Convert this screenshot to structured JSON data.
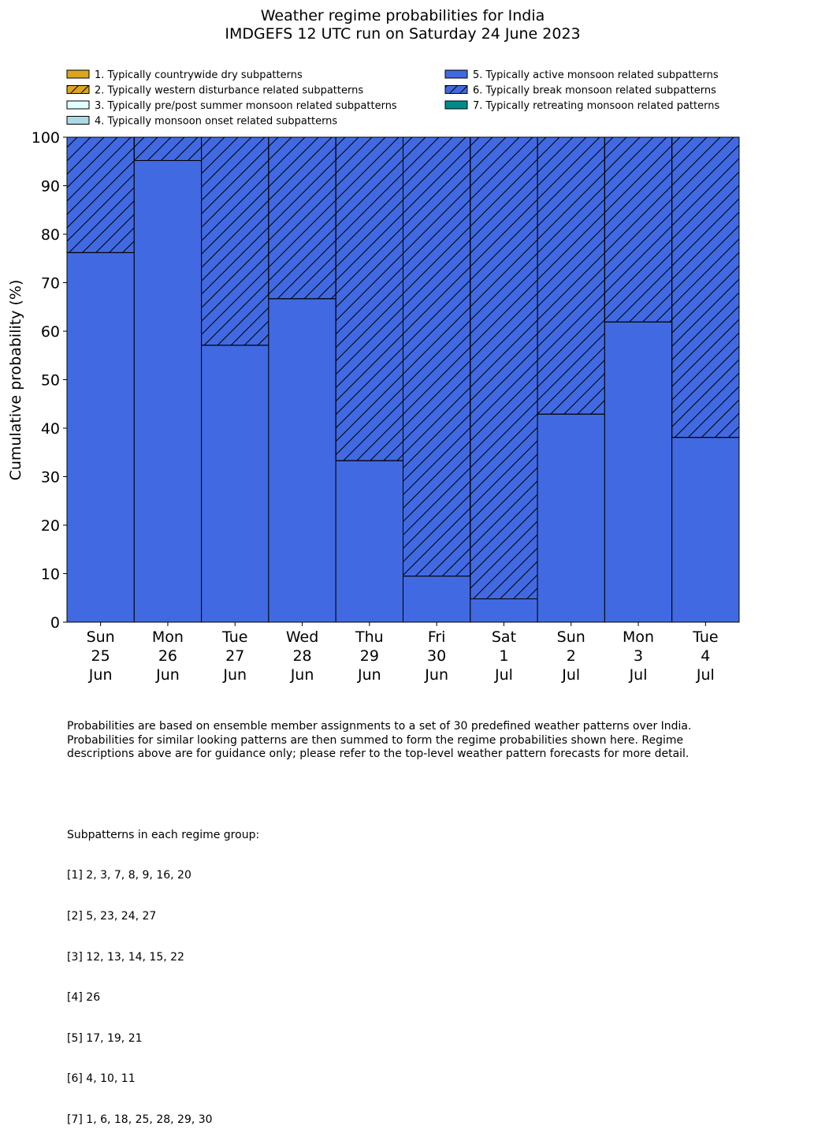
{
  "chart_data": {
    "type": "bar",
    "stacked": true,
    "title": "Weather regime probabilities for India",
    "subtitle": "IMDGEFS 12 UTC run on Saturday 24 June 2023",
    "ylabel": "Cumulative probability (%)",
    "xlabel": "",
    "ylim": [
      0,
      100
    ],
    "yticks": [
      0,
      10,
      20,
      30,
      40,
      50,
      60,
      70,
      80,
      90,
      100
    ],
    "grid": false,
    "legend_placement": "top",
    "categories": [
      [
        "Sun",
        "25",
        "Jun"
      ],
      [
        "Mon",
        "26",
        "Jun"
      ],
      [
        "Tue",
        "27",
        "Jun"
      ],
      [
        "Wed",
        "28",
        "Jun"
      ],
      [
        "Thu",
        "29",
        "Jun"
      ],
      [
        "Fri",
        "30",
        "Jun"
      ],
      [
        "Sat",
        "1",
        "Jul"
      ],
      [
        "Sun",
        "2",
        "Jul"
      ],
      [
        "Mon",
        "3",
        "Jul"
      ],
      [
        "Tue",
        "4",
        "Jul"
      ]
    ],
    "series": [
      {
        "name": "1. Typically countrywide dry subpatterns",
        "color": "#DAA520",
        "hatch": false,
        "values": [
          0,
          0,
          0,
          0,
          0,
          0,
          0,
          0,
          0,
          0
        ]
      },
      {
        "name": "2. Typically western disturbance related subpatterns",
        "color": "#DAA520",
        "hatch": true,
        "values": [
          0,
          0,
          0,
          0,
          0,
          0,
          0,
          0,
          0,
          0
        ]
      },
      {
        "name": "3. Typically pre/post summer monsoon related subpatterns",
        "color": "#E0FFFF",
        "hatch": false,
        "values": [
          0,
          0,
          0,
          0,
          0,
          0,
          0,
          0,
          0,
          0
        ]
      },
      {
        "name": "4. Typically monsoon onset related subpatterns",
        "color": "#ADD8E6",
        "hatch": false,
        "values": [
          0,
          0,
          0,
          0,
          0,
          0,
          0,
          0,
          0,
          0
        ]
      },
      {
        "name": "5. Typically active monsoon related subpatterns",
        "color": "#4169E1",
        "hatch": false,
        "values": [
          76.2,
          95.2,
          57.1,
          66.7,
          33.3,
          9.5,
          4.8,
          42.9,
          61.9,
          38.1
        ]
      },
      {
        "name": "6. Typically break monsoon related subpatterns",
        "color": "#4169E1",
        "hatch": true,
        "values": [
          23.8,
          4.8,
          42.9,
          33.3,
          66.7,
          90.5,
          95.2,
          57.1,
          38.1,
          61.9
        ]
      },
      {
        "name": "7. Typically retreating monsoon related patterns",
        "color": "#008B8B",
        "hatch": false,
        "values": [
          0,
          0,
          0,
          0,
          0,
          0,
          0,
          0,
          0,
          0
        ]
      }
    ]
  },
  "notes": {
    "description": "Probabilities are based on ensemble member assignments to a set of 30 predefined weather patterns over India.\nProbabilities for similar looking patterns are then summed to form the regime probabilities shown here. Regime\ndescriptions above are for guidance only; please refer to the top-level weather pattern forecasts for more detail.",
    "groups_heading": "Subpatterns in each regime group:",
    "groups": [
      "[1] 2, 3, 7, 8, 9, 16, 20",
      "[2] 5, 23, 24, 27",
      "[3] 12, 13, 14, 15, 22",
      "[4] 26",
      "[5] 17, 19, 21",
      "[6] 4, 10, 11",
      "[7] 1, 6, 18, 25, 28, 29, 30"
    ]
  }
}
